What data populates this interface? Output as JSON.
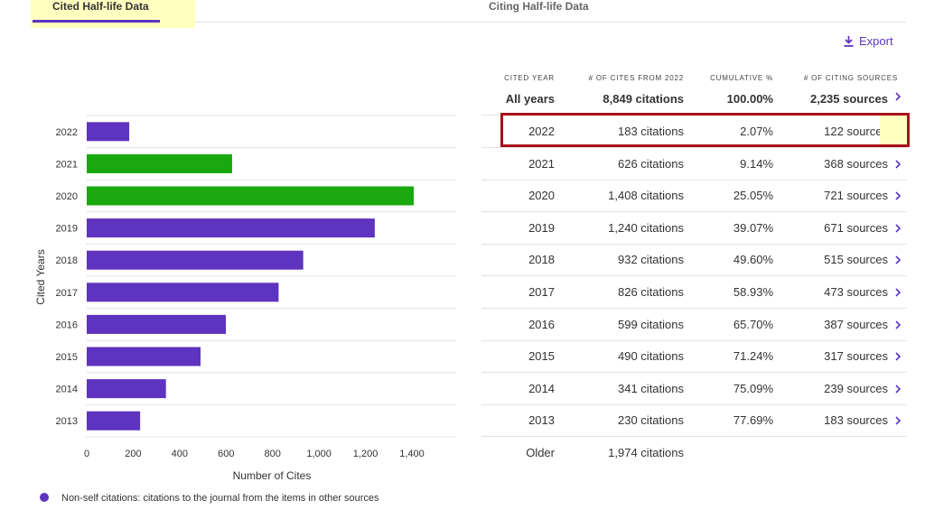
{
  "tabs": {
    "cited": "Cited Half-life Data",
    "citing": "Citing Half-life Data"
  },
  "export_label": "Export",
  "table": {
    "headers": {
      "year": "CITED YEAR",
      "cites": "# OF CITES FROM 2022",
      "cumulative": "CUMULATIVE %",
      "sources": "# OF CITING SOURCES"
    },
    "all_years": {
      "year": "All years",
      "cites": "8,849 citations",
      "cumulative": "100.00%",
      "sources": "2,235 sources"
    },
    "rows": [
      {
        "year": "2022",
        "cites": "183 citations",
        "cumulative": "2.07%",
        "sources": "122 sources"
      },
      {
        "year": "2021",
        "cites": "626 citations",
        "cumulative": "9.14%",
        "sources": "368 sources"
      },
      {
        "year": "2020",
        "cites": "1,408 citations",
        "cumulative": "25.05%",
        "sources": "721 sources"
      },
      {
        "year": "2019",
        "cites": "1,240 citations",
        "cumulative": "39.07%",
        "sources": "671 sources"
      },
      {
        "year": "2018",
        "cites": "932 citations",
        "cumulative": "49.60%",
        "sources": "515 sources"
      },
      {
        "year": "2017",
        "cites": "826 citations",
        "cumulative": "58.93%",
        "sources": "473 sources"
      },
      {
        "year": "2016",
        "cites": "599 citations",
        "cumulative": "65.70%",
        "sources": "387 sources"
      },
      {
        "year": "2015",
        "cites": "490 citations",
        "cumulative": "71.24%",
        "sources": "317 sources"
      },
      {
        "year": "2014",
        "cites": "341 citations",
        "cumulative": "75.09%",
        "sources": "239 sources"
      },
      {
        "year": "2013",
        "cites": "230 citations",
        "cumulative": "77.69%",
        "sources": "183 sources"
      },
      {
        "year": "Older",
        "cites": "1,974 citations",
        "cumulative": "",
        "sources": ""
      }
    ]
  },
  "legend_text": "Non-self citations: citations to the journal from the items in other sources",
  "colors": {
    "accent": "#5e33bf",
    "highlight_bar": "#19a80e",
    "highlight_box": "#a8101b",
    "tab_highlight": "#ffffc0"
  },
  "chart_data": {
    "type": "bar",
    "orientation": "horizontal",
    "categories": [
      "2022",
      "2021",
      "2020",
      "2019",
      "2018",
      "2017",
      "2016",
      "2015",
      "2014",
      "2013"
    ],
    "values": [
      183,
      626,
      1408,
      1240,
      932,
      826,
      599,
      490,
      341,
      230
    ],
    "bar_colors": [
      "#5e33bf",
      "#19a80e",
      "#19a80e",
      "#5e33bf",
      "#5e33bf",
      "#5e33bf",
      "#5e33bf",
      "#5e33bf",
      "#5e33bf",
      "#5e33bf"
    ],
    "xlabel": "Number of Cites",
    "ylabel": "Cited Years",
    "xlim": [
      0,
      1600
    ],
    "xticks": [
      0,
      200,
      400,
      600,
      800,
      1000,
      1200,
      1400
    ],
    "xtick_labels": [
      "0",
      "200",
      "400",
      "600",
      "800",
      "1,000",
      "1,200",
      "1,400"
    ],
    "grid": "horizontal row separators",
    "legend": "bottom-left"
  }
}
